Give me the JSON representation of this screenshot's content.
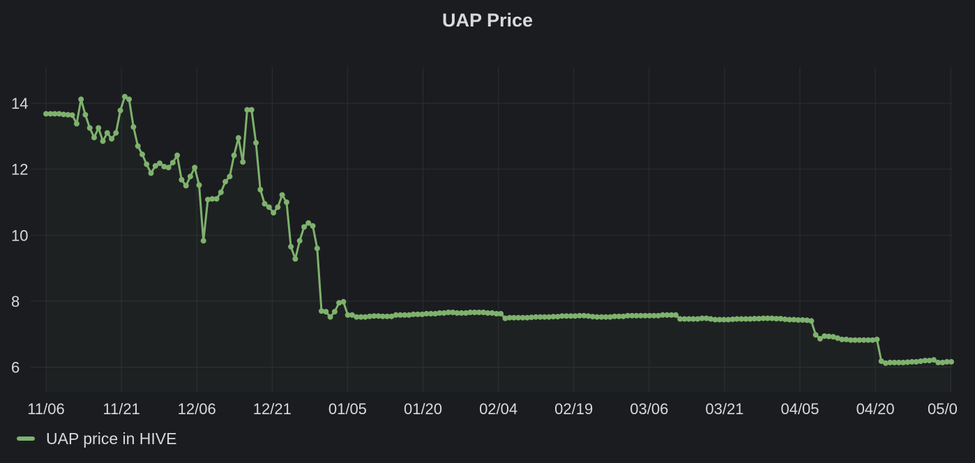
{
  "panel": {
    "title": "UAP Price"
  },
  "colors": {
    "background": "#1b1c20",
    "grid": "#2c2e33",
    "tick_text": "#d8d9da",
    "series": "#7eb26d"
  },
  "legend": {
    "label": "UAP price in HIVE",
    "placement": "bottom-left"
  },
  "chart_data": {
    "type": "line",
    "title": "UAP Price",
    "xlabel": "",
    "ylabel": "",
    "x_tick_labels": [
      "11/06",
      "11/21",
      "12/06",
      "12/21",
      "01/05",
      "01/20",
      "02/04",
      "02/19",
      "03/06",
      "03/21",
      "04/05",
      "04/20",
      "05/0"
    ],
    "y_tick_labels": [
      "6",
      "8",
      "10",
      "12",
      "14"
    ],
    "y_ticks": [
      6,
      8,
      10,
      12,
      14
    ],
    "ylim": [
      5.25,
      15.1
    ],
    "grid": true,
    "x_start_label": "11/06",
    "x_tick_step_days": 15,
    "series": [
      {
        "name": "UAP price in HIVE",
        "color": "#7eb26d",
        "values": [
          13.68,
          13.68,
          13.68,
          13.68,
          13.66,
          13.65,
          13.64,
          13.38,
          14.12,
          13.65,
          13.25,
          12.96,
          13.25,
          12.85,
          13.1,
          12.92,
          13.1,
          13.78,
          14.2,
          14.12,
          13.28,
          12.7,
          12.45,
          12.15,
          11.88,
          12.1,
          12.18,
          12.08,
          12.05,
          12.2,
          12.42,
          11.68,
          11.5,
          11.78,
          12.05,
          11.52,
          9.83,
          11.08,
          11.1,
          11.1,
          11.3,
          11.62,
          11.78,
          12.42,
          12.95,
          12.22,
          13.8,
          13.8,
          12.8,
          11.38,
          10.95,
          10.85,
          10.68,
          10.85,
          11.22,
          11.0,
          9.65,
          9.28,
          9.83,
          10.25,
          10.37,
          10.28,
          9.6,
          7.7,
          7.68,
          7.52,
          7.68,
          7.95,
          7.98,
          7.58,
          7.58,
          7.52,
          7.52,
          7.52,
          7.54,
          7.55,
          7.55,
          7.54,
          7.54,
          7.54,
          7.58,
          7.58,
          7.58,
          7.58,
          7.6,
          7.6,
          7.6,
          7.62,
          7.62,
          7.62,
          7.64,
          7.64,
          7.66,
          7.66,
          7.64,
          7.64,
          7.64,
          7.66,
          7.66,
          7.66,
          7.66,
          7.64,
          7.64,
          7.62,
          7.62,
          7.48,
          7.5,
          7.5,
          7.5,
          7.5,
          7.5,
          7.51,
          7.52,
          7.52,
          7.52,
          7.52,
          7.53,
          7.53,
          7.55,
          7.55,
          7.55,
          7.55,
          7.56,
          7.56,
          7.55,
          7.53,
          7.52,
          7.52,
          7.52,
          7.52,
          7.54,
          7.54,
          7.54,
          7.56,
          7.56,
          7.56,
          7.56,
          7.56,
          7.56,
          7.56,
          7.56,
          7.58,
          7.58,
          7.58,
          7.58,
          7.46,
          7.46,
          7.46,
          7.46,
          7.46,
          7.48,
          7.48,
          7.46,
          7.44,
          7.44,
          7.44,
          7.44,
          7.45,
          7.46,
          7.46,
          7.46,
          7.46,
          7.47,
          7.47,
          7.48,
          7.48,
          7.48,
          7.47,
          7.47,
          7.45,
          7.44,
          7.44,
          7.43,
          7.43,
          7.42,
          7.4,
          6.98,
          6.86,
          6.94,
          6.93,
          6.92,
          6.88,
          6.84,
          6.84,
          6.82,
          6.82,
          6.82,
          6.82,
          6.82,
          6.82,
          6.84,
          6.18,
          6.12,
          6.14,
          6.14,
          6.14,
          6.14,
          6.15,
          6.16,
          6.16,
          6.18,
          6.2,
          6.2,
          6.22,
          6.14,
          6.14,
          6.16,
          6.16
        ]
      }
    ]
  }
}
